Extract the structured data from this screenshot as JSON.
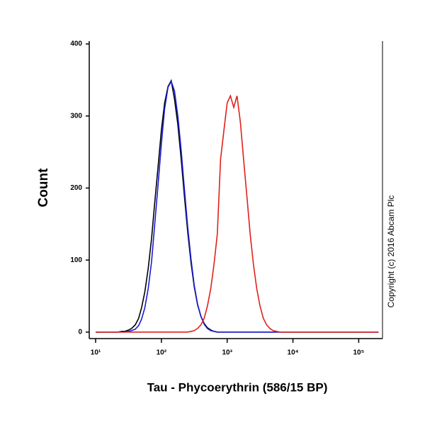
{
  "chart_data": {
    "type": "line",
    "x_label": "Tau - Phycoerythrin (586/15 BP)",
    "y_label": "Count",
    "annotation": "Copyright (c) 2016 Abcam Plc",
    "log_x": true,
    "x": [
      10,
      20,
      22,
      25,
      28,
      32,
      35,
      40,
      45,
      50,
      56,
      63,
      71,
      79,
      89,
      100,
      112,
      126,
      141,
      158,
      178,
      200,
      224,
      251,
      282,
      316,
      355,
      398,
      447,
      501,
      562,
      631,
      708,
      794,
      891,
      1000,
      1122,
      1259,
      1413,
      1585,
      1778,
      1995,
      2239,
      2512,
      2818,
      3162,
      3548,
      3981,
      4467,
      5012,
      5623,
      6310,
      200000
    ],
    "series": [
      {
        "name": "Black",
        "color": "#000000",
        "values": [
          0,
          0,
          0,
          1,
          1,
          3,
          5,
          10,
          19,
          34,
          56,
          88,
          130,
          178,
          230,
          281,
          318,
          341,
          349,
          324,
          288,
          240,
          188,
          139,
          96,
          63,
          38,
          22,
          12,
          6,
          3,
          1,
          0,
          0,
          0,
          0,
          0,
          0,
          0,
          0,
          0,
          0,
          0,
          0,
          0,
          0,
          0,
          0,
          0,
          0,
          0,
          0,
          0
        ]
      },
      {
        "name": "Blue",
        "color": "#1a1ad6",
        "values": [
          0,
          0,
          0,
          0,
          0,
          1,
          2,
          4,
          9,
          18,
          34,
          60,
          98,
          148,
          205,
          262,
          310,
          340,
          348,
          335,
          300,
          252,
          198,
          146,
          101,
          65,
          39,
          22,
          11,
          5,
          2,
          1,
          0,
          0,
          0,
          0,
          0,
          0,
          0,
          0,
          0,
          0,
          0,
          0,
          0,
          0,
          0,
          0,
          0,
          0,
          0,
          0,
          0
        ]
      },
      {
        "name": "Red",
        "color": "#e0201b",
        "values": [
          0,
          0,
          0,
          0,
          0,
          0,
          0,
          0,
          0,
          0,
          0,
          0,
          0,
          0,
          0,
          0,
          0,
          0,
          0,
          0,
          0,
          0,
          0,
          0,
          1,
          2,
          5,
          10,
          19,
          36,
          60,
          94,
          136,
          240,
          280,
          318,
          328,
          312,
          328,
          292,
          240,
          188,
          136,
          94,
          60,
          36,
          19,
          10,
          5,
          2,
          1,
          0,
          0
        ]
      }
    ],
    "xlim": [
      8,
      230000
    ],
    "ylim": [
      -9,
      404
    ],
    "xticks": [
      {
        "value": 10,
        "label": "10¹"
      },
      {
        "value": 100,
        "label": "10²"
      },
      {
        "value": 1000,
        "label": "10³"
      },
      {
        "value": 10000,
        "label": "10⁴"
      },
      {
        "value": 100000,
        "label": "10⁵"
      }
    ],
    "yticks": [
      0,
      100,
      200,
      300,
      400
    ]
  }
}
